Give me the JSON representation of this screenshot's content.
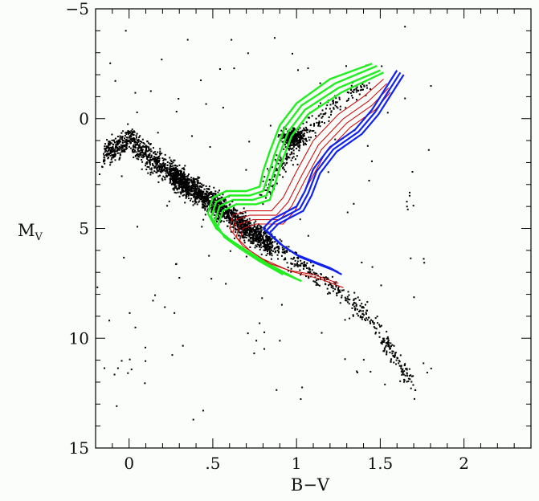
{
  "chart_data": {
    "type": "scatter",
    "title": "",
    "xlabel": "B−V",
    "ylabel_main": "M",
    "ylabel_sub": "V",
    "xlim": [
      -0.2,
      2.4
    ],
    "ylim": [
      15,
      -5
    ],
    "y_inverted": true,
    "grid": false,
    "x_ticks": [
      {
        "value": 0,
        "label": "0"
      },
      {
        "value": 0.5,
        "label": ".5"
      },
      {
        "value": 1,
        "label": "1"
      },
      {
        "value": 1.5,
        "label": "1.5"
      },
      {
        "value": 2,
        "label": "2"
      }
    ],
    "y_ticks": [
      {
        "value": -5,
        "label": "−5"
      },
      {
        "value": 0,
        "label": "0"
      },
      {
        "value": 5,
        "label": "5"
      },
      {
        "value": 10,
        "label": "10"
      },
      {
        "value": 15,
        "label": "15"
      }
    ],
    "x_minor_step": 0.1,
    "y_minor_step": 1,
    "colors": {
      "points": "#000000",
      "green": "#22ee22",
      "red": "#cc1111",
      "blue": "#1122ee",
      "frame": "#000000"
    },
    "point_density_ridge": [
      [
        -0.15,
        1.6
      ],
      [
        0.0,
        0.9
      ],
      [
        0.1,
        1.6
      ],
      [
        0.2,
        2.2
      ],
      [
        0.3,
        2.8
      ],
      [
        0.4,
        3.3
      ],
      [
        0.5,
        3.8
      ],
      [
        0.6,
        4.4
      ],
      [
        0.7,
        5.0
      ],
      [
        0.8,
        5.5
      ],
      [
        0.9,
        6.0
      ],
      [
        1.0,
        6.5
      ],
      [
        1.1,
        7.0
      ],
      [
        1.2,
        7.6
      ],
      [
        1.3,
        8.2
      ],
      [
        1.4,
        8.8
      ],
      [
        1.5,
        9.8
      ],
      [
        1.6,
        11.0
      ],
      [
        1.7,
        12.3
      ]
    ],
    "red_clump": {
      "x": 0.98,
      "y": 0.8
    },
    "giant_branch": [
      [
        0.8,
        3.4
      ],
      [
        0.9,
        2.0
      ],
      [
        1.0,
        1.0
      ],
      [
        1.2,
        -0.5
      ],
      [
        1.4,
        -1.5
      ]
    ],
    "series": [
      {
        "color": "green",
        "lines": [
          [
            [
              0.47,
              4.3
            ],
            [
              0.5,
              3.6
            ],
            [
              0.58,
              3.3
            ],
            [
              0.7,
              3.3
            ],
            [
              0.78,
              3.1
            ],
            [
              0.8,
              2.4
            ],
            [
              0.84,
              1.5
            ],
            [
              0.9,
              0.3
            ],
            [
              1.0,
              -0.7
            ],
            [
              1.2,
              -1.8
            ],
            [
              1.45,
              -2.5
            ]
          ],
          [
            [
              0.49,
              4.5
            ],
            [
              0.52,
              3.8
            ],
            [
              0.6,
              3.5
            ],
            [
              0.72,
              3.5
            ],
            [
              0.8,
              3.3
            ],
            [
              0.83,
              2.6
            ],
            [
              0.87,
              1.6
            ],
            [
              0.93,
              0.4
            ],
            [
              1.03,
              -0.6
            ],
            [
              1.23,
              -1.6
            ],
            [
              1.48,
              -2.4
            ]
          ],
          [
            [
              0.51,
              4.7
            ],
            [
              0.54,
              4.0
            ],
            [
              0.62,
              3.7
            ],
            [
              0.74,
              3.7
            ],
            [
              0.82,
              3.5
            ],
            [
              0.85,
              2.8
            ],
            [
              0.89,
              1.8
            ],
            [
              0.95,
              0.6
            ],
            [
              1.05,
              -0.4
            ],
            [
              1.25,
              -1.4
            ],
            [
              1.5,
              -2.2
            ]
          ],
          [
            [
              0.53,
              4.9
            ],
            [
              0.56,
              4.2
            ],
            [
              0.64,
              3.9
            ],
            [
              0.76,
              3.9
            ],
            [
              0.84,
              3.7
            ],
            [
              0.87,
              3.0
            ],
            [
              0.91,
              2.0
            ],
            [
              0.97,
              0.8
            ],
            [
              1.07,
              -0.2
            ],
            [
              1.27,
              -1.2
            ],
            [
              1.52,
              -2.1
            ]
          ],
          [
            [
              0.47,
              4.3
            ],
            [
              0.52,
              5.0
            ],
            [
              0.6,
              5.5
            ],
            [
              0.72,
              6.1
            ],
            [
              0.85,
              6.7
            ],
            [
              1.0,
              7.3
            ]
          ],
          [
            [
              0.49,
              4.5
            ],
            [
              0.55,
              5.2
            ],
            [
              0.63,
              5.7
            ],
            [
              0.75,
              6.3
            ],
            [
              0.88,
              6.9
            ],
            [
              1.03,
              7.4
            ]
          ],
          [
            [
              0.51,
              4.7
            ],
            [
              0.57,
              5.4
            ],
            [
              0.66,
              5.9
            ],
            [
              0.78,
              6.5
            ],
            [
              0.92,
              7.1
            ]
          ]
        ]
      },
      {
        "color": "red",
        "lines": [
          [
            [
              0.6,
              5.0
            ],
            [
              0.62,
              4.4
            ],
            [
              0.7,
              4.2
            ],
            [
              0.85,
              4.2
            ],
            [
              0.92,
              3.6
            ],
            [
              1.0,
              2.4
            ],
            [
              1.1,
              1.0
            ],
            [
              1.25,
              -0.2
            ],
            [
              1.4,
              -1.0
            ],
            [
              1.52,
              -1.8
            ]
          ],
          [
            [
              0.62,
              5.2
            ],
            [
              0.64,
              4.6
            ],
            [
              0.72,
              4.4
            ],
            [
              0.88,
              4.4
            ],
            [
              0.95,
              3.8
            ],
            [
              1.03,
              2.6
            ],
            [
              1.13,
              1.2
            ],
            [
              1.28,
              0.0
            ],
            [
              1.43,
              -0.8
            ],
            [
              1.54,
              -1.6
            ]
          ],
          [
            [
              0.64,
              5.4
            ],
            [
              0.66,
              4.8
            ],
            [
              0.74,
              4.6
            ],
            [
              0.9,
              4.6
            ],
            [
              0.97,
              4.0
            ],
            [
              1.05,
              2.8
            ],
            [
              1.15,
              1.4
            ],
            [
              1.3,
              0.2
            ],
            [
              1.45,
              -0.6
            ],
            [
              1.55,
              -1.4
            ]
          ],
          [
            [
              0.66,
              5.6
            ],
            [
              0.68,
              5.0
            ],
            [
              0.76,
              4.8
            ],
            [
              0.92,
              4.8
            ],
            [
              0.99,
              4.2
            ],
            [
              1.07,
              3.0
            ],
            [
              1.17,
              1.6
            ],
            [
              1.32,
              0.4
            ],
            [
              1.47,
              -0.4
            ],
            [
              1.56,
              -1.2
            ]
          ],
          [
            [
              0.6,
              5.0
            ],
            [
              0.68,
              5.8
            ],
            [
              0.8,
              6.4
            ],
            [
              0.95,
              6.9
            ],
            [
              1.1,
              7.1
            ],
            [
              1.25,
              7.5
            ]
          ],
          [
            [
              0.64,
              5.4
            ],
            [
              0.72,
              6.0
            ],
            [
              0.84,
              6.6
            ],
            [
              0.99,
              7.0
            ],
            [
              1.14,
              7.3
            ],
            [
              1.28,
              7.7
            ]
          ]
        ]
      },
      {
        "color": "blue",
        "lines": [
          [
            [
              0.8,
              5.0
            ],
            [
              0.85,
              4.6
            ],
            [
              1.0,
              4.0
            ],
            [
              1.05,
              3.3
            ],
            [
              1.1,
              2.3
            ],
            [
              1.2,
              1.3
            ],
            [
              1.35,
              0.5
            ],
            [
              1.45,
              -0.4
            ],
            [
              1.55,
              -1.6
            ],
            [
              1.6,
              -2.2
            ]
          ],
          [
            [
              0.82,
              5.1
            ],
            [
              0.87,
              4.7
            ],
            [
              1.02,
              4.1
            ],
            [
              1.07,
              3.4
            ],
            [
              1.12,
              2.4
            ],
            [
              1.22,
              1.4
            ],
            [
              1.37,
              0.6
            ],
            [
              1.47,
              -0.3
            ],
            [
              1.57,
              -1.5
            ],
            [
              1.62,
              -2.1
            ]
          ],
          [
            [
              0.84,
              5.2
            ],
            [
              0.89,
              4.8
            ],
            [
              1.04,
              4.2
            ],
            [
              1.09,
              3.5
            ],
            [
              1.14,
              2.5
            ],
            [
              1.24,
              1.5
            ],
            [
              1.39,
              0.7
            ],
            [
              1.49,
              -0.2
            ],
            [
              1.59,
              -1.4
            ],
            [
              1.64,
              -2.0
            ]
          ],
          [
            [
              0.8,
              5.0
            ],
            [
              0.9,
              5.7
            ],
            [
              1.0,
              6.2
            ],
            [
              1.1,
              6.5
            ],
            [
              1.2,
              6.8
            ],
            [
              1.25,
              7.0
            ]
          ],
          [
            [
              0.82,
              5.1
            ],
            [
              0.92,
              5.8
            ],
            [
              1.02,
              6.3
            ],
            [
              1.12,
              6.6
            ],
            [
              1.22,
              6.9
            ],
            [
              1.27,
              7.1
            ]
          ]
        ]
      }
    ]
  }
}
